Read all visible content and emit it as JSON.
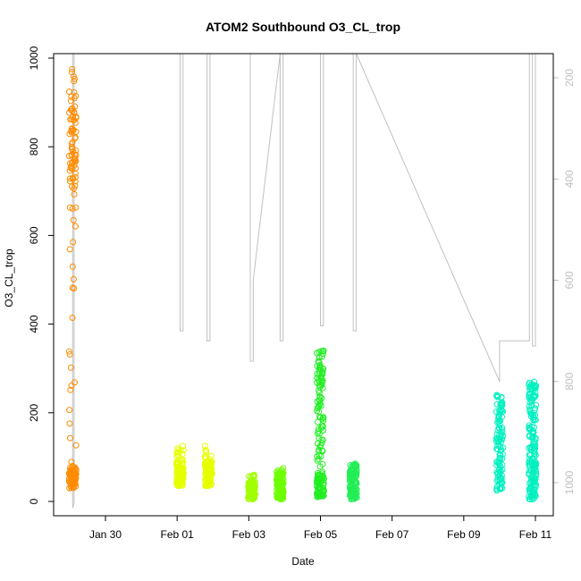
{
  "chart_data": {
    "type": "scatter",
    "title": "ATOM2 Southbound O3_CL_trop",
    "xlabel": "Date",
    "ylabel": "O3_CL_trop",
    "x_date_range": [
      "2016-01-28T12:00",
      "2016-02-11T12:00"
    ],
    "ylim": [
      0,
      1000
    ],
    "y_ticks": [
      "0",
      "200",
      "400",
      "600",
      "800",
      "1000"
    ],
    "x_ticks": [
      {
        "date": "2016-01-30",
        "label": "Jan 30"
      },
      {
        "date": "2016-02-01",
        "label": "Feb 01"
      },
      {
        "date": "2016-02-03",
        "label": "Feb 03"
      },
      {
        "date": "2016-02-05",
        "label": "Feb 05"
      },
      {
        "date": "2016-02-07",
        "label": "Feb 07"
      },
      {
        "date": "2016-02-09",
        "label": "Feb 09"
      },
      {
        "date": "2016-02-11",
        "label": "Feb 11"
      }
    ],
    "right_axis": {
      "reversed": true,
      "ylim": [
        1050,
        150
      ],
      "ticks": [
        "200",
        "400",
        "600",
        "800",
        "1000"
      ],
      "color": "#c0c0c0"
    },
    "grid": false,
    "legend": "none",
    "series": [
      {
        "date": "2016-01-29T02:00",
        "color": "#FF8C00",
        "ymin": 30,
        "ymax": 975,
        "dense_min": 30,
        "dense_max": 80,
        "upper_min": 700,
        "upper_max": 930
      },
      {
        "date": "2016-02-01T02:00",
        "color": "#E6FF00",
        "ymin": 35,
        "ymax": 125,
        "dense_min": 35,
        "dense_max": 80
      },
      {
        "date": "2016-02-01T21:00",
        "color": "#E6FF00",
        "ymin": 35,
        "ymax": 125,
        "dense_min": 35,
        "dense_max": 90
      },
      {
        "date": "2016-02-03T02:00",
        "color": "#A0FF00",
        "ymin": 5,
        "ymax": 60,
        "dense_min": 5,
        "dense_max": 45
      },
      {
        "date": "2016-02-03T21:00",
        "color": "#6EFF00",
        "ymin": 5,
        "ymax": 75,
        "dense_min": 5,
        "dense_max": 65
      },
      {
        "date": "2016-02-05T00:00",
        "color": "#22EE22",
        "ymin": 10,
        "ymax": 340,
        "dense_min": 10,
        "dense_max": 60,
        "upper_min": 100,
        "upper_max": 340
      },
      {
        "date": "2016-02-05T22:00",
        "color": "#22EE55",
        "ymin": 5,
        "ymax": 85,
        "dense_min": 5,
        "dense_max": 85
      },
      {
        "date": "2016-02-10T00:00",
        "color": "#00F0C0",
        "ymin": 25,
        "ymax": 240,
        "dense_min": 25,
        "dense_max": 240
      },
      {
        "date": "2016-02-10T22:00",
        "color": "#00F0C0",
        "ymin": 5,
        "ymax": 270,
        "dense_min": 5,
        "dense_max": 110,
        "upper_min": 110,
        "upper_max": 270
      }
    ],
    "pressure_trace": {
      "color": "#c0c0c0",
      "points": [
        [
          "2016-01-29T02:00",
          150
        ],
        [
          "2016-01-29T02:00",
          1050
        ],
        [
          "2016-01-29T03:00",
          1040
        ],
        [
          "2016-01-29T03:00",
          150
        ],
        [
          "2016-02-01T02:00",
          150
        ],
        [
          "2016-02-01T02:00",
          700
        ],
        [
          "2016-02-01T04:00",
          700
        ],
        [
          "2016-02-01T04:00",
          150
        ],
        [
          "2016-02-01T20:00",
          150
        ],
        [
          "2016-02-01T20:00",
          720
        ],
        [
          "2016-02-01T22:00",
          720
        ],
        [
          "2016-02-01T22:00",
          150
        ],
        [
          "2016-02-03T01:00",
          150
        ],
        [
          "2016-02-03T01:00",
          760
        ],
        [
          "2016-02-03T03:00",
          760
        ],
        [
          "2016-02-03T03:00",
          600
        ],
        [
          "2016-02-03T21:00",
          150
        ],
        [
          "2016-02-03T21:00",
          720
        ],
        [
          "2016-02-03T23:00",
          720
        ],
        [
          "2016-02-03T23:00",
          150
        ],
        [
          "2016-02-05T00:00",
          150
        ],
        [
          "2016-02-05T00:00",
          690
        ],
        [
          "2016-02-05T02:00",
          690
        ],
        [
          "2016-02-05T02:00",
          150
        ],
        [
          "2016-02-05T22:00",
          150
        ],
        [
          "2016-02-05T22:00",
          700
        ],
        [
          "2016-02-06T00:00",
          700
        ],
        [
          "2016-02-06T00:00",
          150
        ],
        [
          "2016-02-10T00:00",
          800
        ],
        [
          "2016-02-10T00:00",
          720
        ],
        [
          "2016-02-10T20:00",
          720
        ],
        [
          "2016-02-10T20:00",
          150
        ],
        [
          "2016-02-10T22:00",
          150
        ],
        [
          "2016-02-10T22:00",
          730
        ],
        [
          "2016-02-11T00:00",
          730
        ],
        [
          "2016-02-11T00:00",
          150
        ]
      ]
    }
  }
}
